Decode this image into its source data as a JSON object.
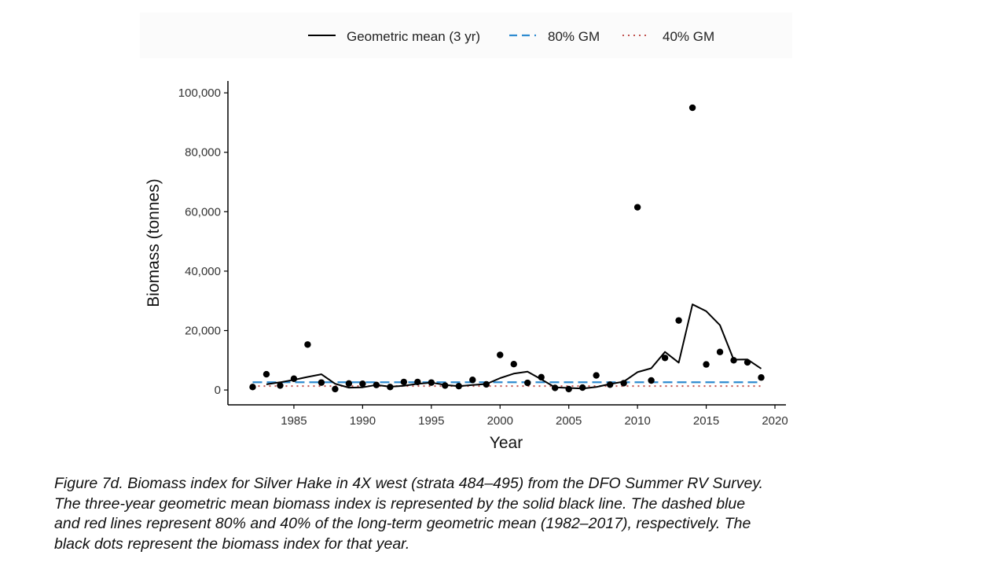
{
  "chart_data": {
    "type": "line",
    "xlabel": "Year",
    "ylabel": "Biomass (tonnes)",
    "xlim": [
      1980.2,
      2020.8
    ],
    "ylim": [
      -5000,
      104000
    ],
    "x_ticks": [
      1985,
      1990,
      1995,
      2000,
      2005,
      2010,
      2015,
      2020
    ],
    "y_ticks": [
      0,
      20000,
      40000,
      60000,
      80000,
      100000
    ],
    "x_tick_labels": [
      "1985",
      "1990",
      "1995",
      "2000",
      "2005",
      "2010",
      "2015",
      "2020"
    ],
    "y_tick_labels": [
      "0",
      "20,000",
      "40,000",
      "60,000",
      "80,000",
      "100,000"
    ],
    "grid": false,
    "legend_position": "top",
    "legend": [
      "Geometric mean (3 yr)",
      "80% GM",
      "40% GM"
    ],
    "series": [
      {
        "name": "Geometric mean (3 yr)",
        "style": "solid",
        "color": "#000000",
        "x": [
          1983,
          1984,
          1985,
          1986,
          1987,
          1988,
          1989,
          1990,
          1991,
          1992,
          1993,
          1994,
          1995,
          1996,
          1997,
          1998,
          1999,
          2000,
          2001,
          2002,
          2003,
          2004,
          2005,
          2006,
          2007,
          2008,
          2009,
          2010,
          2011,
          2012,
          2013,
          2014,
          2015,
          2016,
          2017,
          2018,
          2019
        ],
        "values": [
          1900,
          2600,
          3400,
          4400,
          5300,
          2100,
          800,
          900,
          1700,
          1100,
          1400,
          2100,
          2500,
          1700,
          1300,
          1700,
          2000,
          4000,
          5500,
          6200,
          3600,
          900,
          700,
          500,
          1000,
          2000,
          2800,
          6000,
          7300,
          12800,
          9200,
          28800,
          26500,
          21800,
          10200,
          10300,
          7200
        ]
      },
      {
        "name": "Biomass index",
        "style": "points",
        "color": "#000000",
        "x": [
          1982,
          1983,
          1984,
          1985,
          1986,
          1987,
          1988,
          1989,
          1990,
          1991,
          1992,
          1993,
          1994,
          1995,
          1996,
          1997,
          1998,
          1999,
          2000,
          2001,
          2002,
          2003,
          2004,
          2005,
          2006,
          2007,
          2008,
          2009,
          2010,
          2011,
          2012,
          2013,
          2014,
          2015,
          2016,
          2017,
          2018,
          2019
        ],
        "values": [
          1000,
          5300,
          1500,
          3800,
          15300,
          2500,
          300,
          2200,
          2100,
          1700,
          1000,
          2700,
          2700,
          2500,
          1500,
          1300,
          3400,
          1900,
          11800,
          8700,
          2400,
          4300,
          700,
          300,
          800,
          4900,
          1800,
          2300,
          61500,
          3200,
          10800,
          23400,
          95000,
          8600,
          12800,
          10000,
          9300,
          4200
        ]
      },
      {
        "name": "80% GM",
        "style": "dashed",
        "color": "#2E8BD0",
        "x": [
          1982,
          2019
        ],
        "values": [
          2600,
          2600
        ]
      },
      {
        "name": "40% GM",
        "style": "dotted",
        "color": "#C0504D",
        "x": [
          1982,
          2019
        ],
        "values": [
          1300,
          1300
        ]
      }
    ]
  },
  "caption": {
    "lines": [
      "Figure 7d. Biomass index for Silver Hake in 4X west (strata 484–495) from the DFO Summer RV Survey.",
      "The three-year geometric mean biomass index is represented by the solid black line. The dashed blue",
      "and red lines represent 80% and 40% of the long-term geometric mean (1982–2017), respectively. The",
      "black dots represent the biomass index for that year."
    ]
  }
}
